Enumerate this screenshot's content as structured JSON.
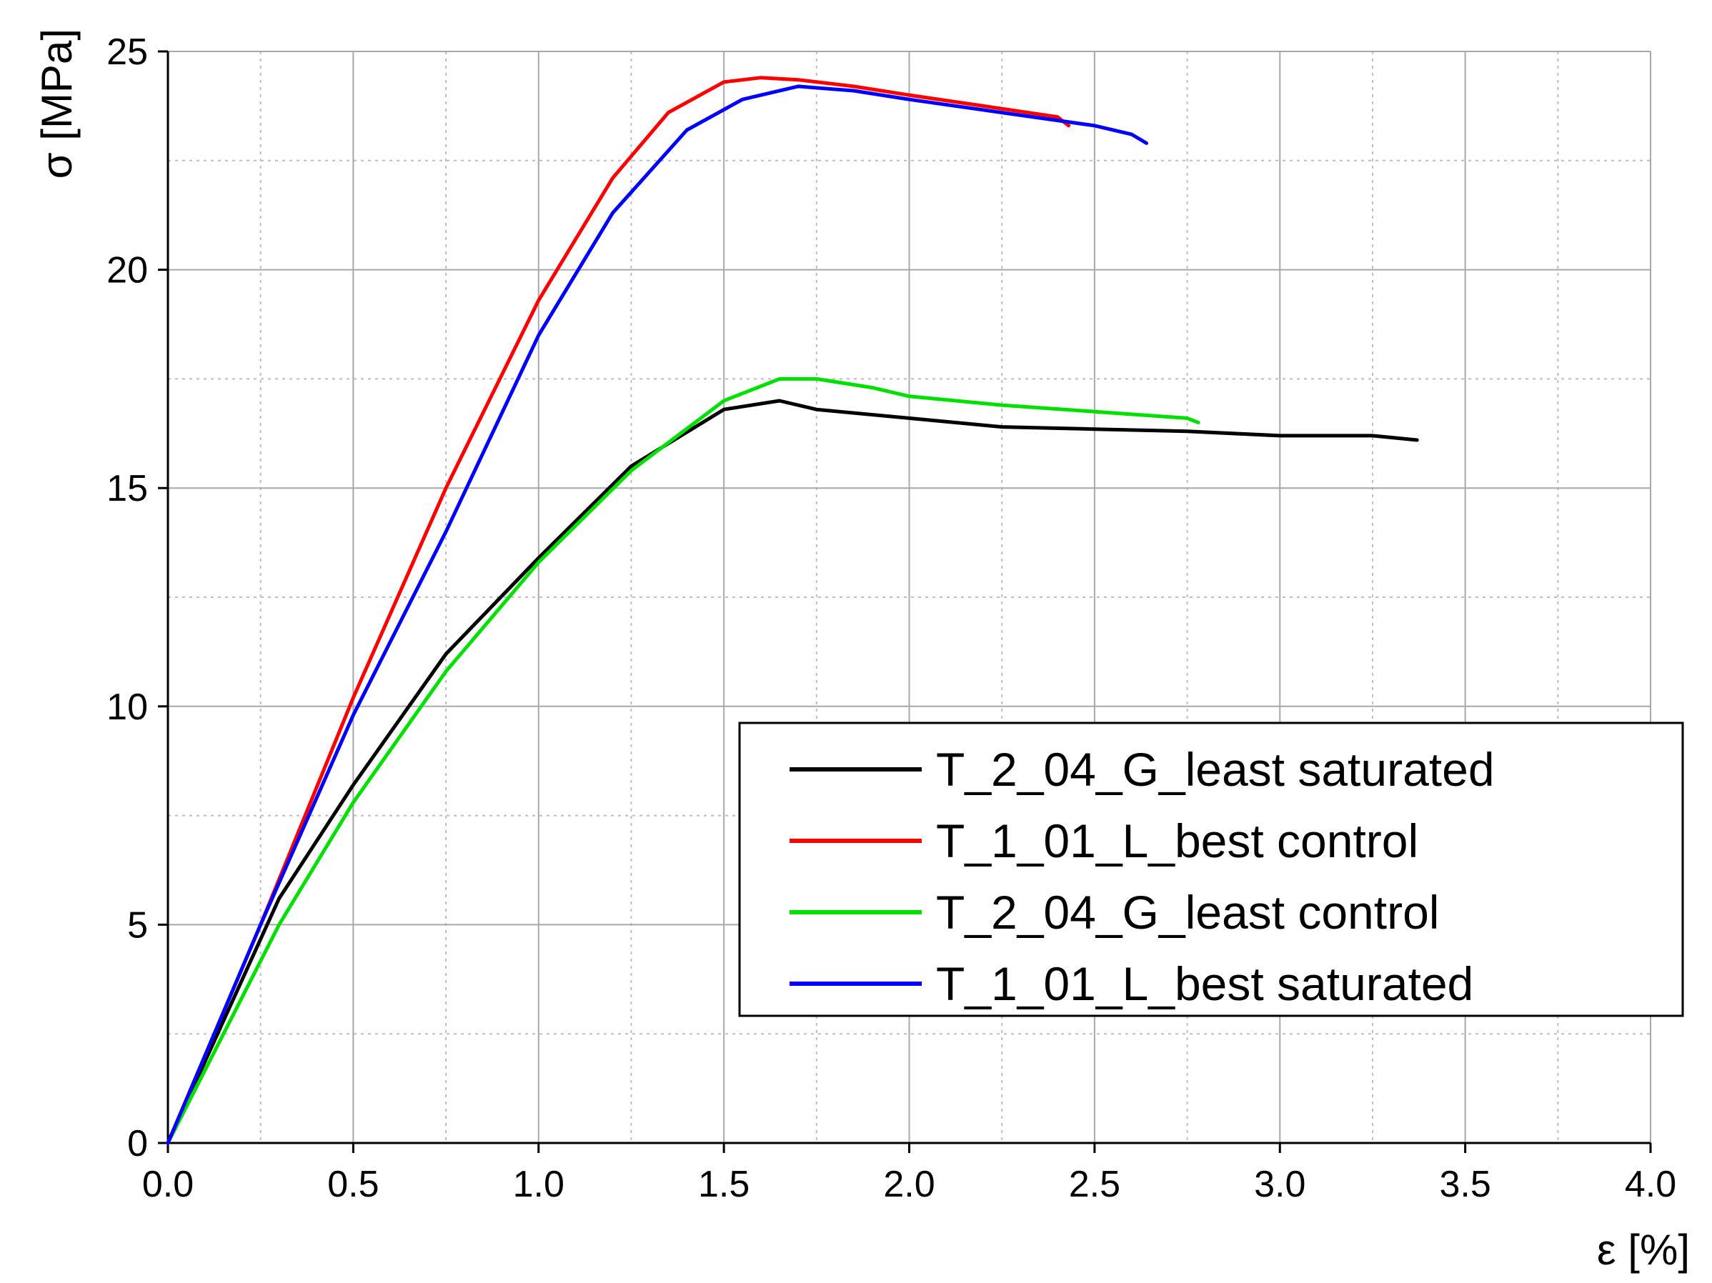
{
  "chart_data": {
    "type": "line",
    "title": "",
    "xlabel": "ε [%]",
    "ylabel": "σ [MPa]",
    "xlim": [
      0,
      4
    ],
    "ylim": [
      0,
      25
    ],
    "x_ticks": [
      0.0,
      0.5,
      1.0,
      1.5,
      2.0,
      2.5,
      3.0,
      3.5,
      4.0
    ],
    "x_tick_labels": [
      "0.0",
      "0.5",
      "1.0",
      "1.5",
      "2.0",
      "2.5",
      "3.0",
      "3.5",
      "4.0"
    ],
    "y_ticks": [
      0,
      5,
      10,
      15,
      20,
      25
    ],
    "y_tick_labels": [
      "0",
      "5",
      "10",
      "15",
      "20",
      "25"
    ],
    "grid": true,
    "legend_position": "lower-right",
    "series": [
      {
        "name": "T_2_04_G_least saturated",
        "color": "#000000",
        "x": [
          0,
          0.3,
          0.5,
          0.75,
          1.0,
          1.25,
          1.5,
          1.65,
          1.75,
          2.0,
          2.25,
          2.5,
          2.75,
          3.0,
          3.25,
          3.37
        ],
        "y": [
          0,
          5.6,
          8.2,
          11.2,
          13.4,
          15.5,
          16.8,
          17.0,
          16.8,
          16.6,
          16.4,
          16.35,
          16.3,
          16.2,
          16.2,
          16.1
        ]
      },
      {
        "name": "T_1_01_L_best control",
        "color": "#ff0000",
        "x": [
          0,
          0.25,
          0.5,
          0.75,
          1.0,
          1.2,
          1.35,
          1.5,
          1.6,
          1.7,
          1.85,
          2.0,
          2.2,
          2.4,
          2.43
        ],
        "y": [
          0,
          5.0,
          10.2,
          15.0,
          19.3,
          22.1,
          23.6,
          24.3,
          24.4,
          24.35,
          24.2,
          24.0,
          23.75,
          23.5,
          23.3
        ]
      },
      {
        "name": "T_2_04_G_least control",
        "color": "#00e000",
        "x": [
          0,
          0.3,
          0.5,
          0.75,
          1.0,
          1.25,
          1.5,
          1.65,
          1.75,
          1.9,
          2.0,
          2.25,
          2.5,
          2.75,
          2.78
        ],
        "y": [
          0,
          5.0,
          7.8,
          10.8,
          13.3,
          15.4,
          17.0,
          17.5,
          17.5,
          17.3,
          17.1,
          16.9,
          16.75,
          16.6,
          16.5
        ]
      },
      {
        "name": "T_1_01_L_best saturated",
        "color": "#0000ff",
        "x": [
          0,
          0.25,
          0.5,
          0.75,
          1.0,
          1.2,
          1.4,
          1.55,
          1.7,
          1.85,
          2.0,
          2.25,
          2.5,
          2.6,
          2.64
        ],
        "y": [
          0,
          5.0,
          9.8,
          14.0,
          18.5,
          21.3,
          23.2,
          23.9,
          24.2,
          24.1,
          23.9,
          23.6,
          23.3,
          23.1,
          22.9
        ]
      }
    ]
  }
}
